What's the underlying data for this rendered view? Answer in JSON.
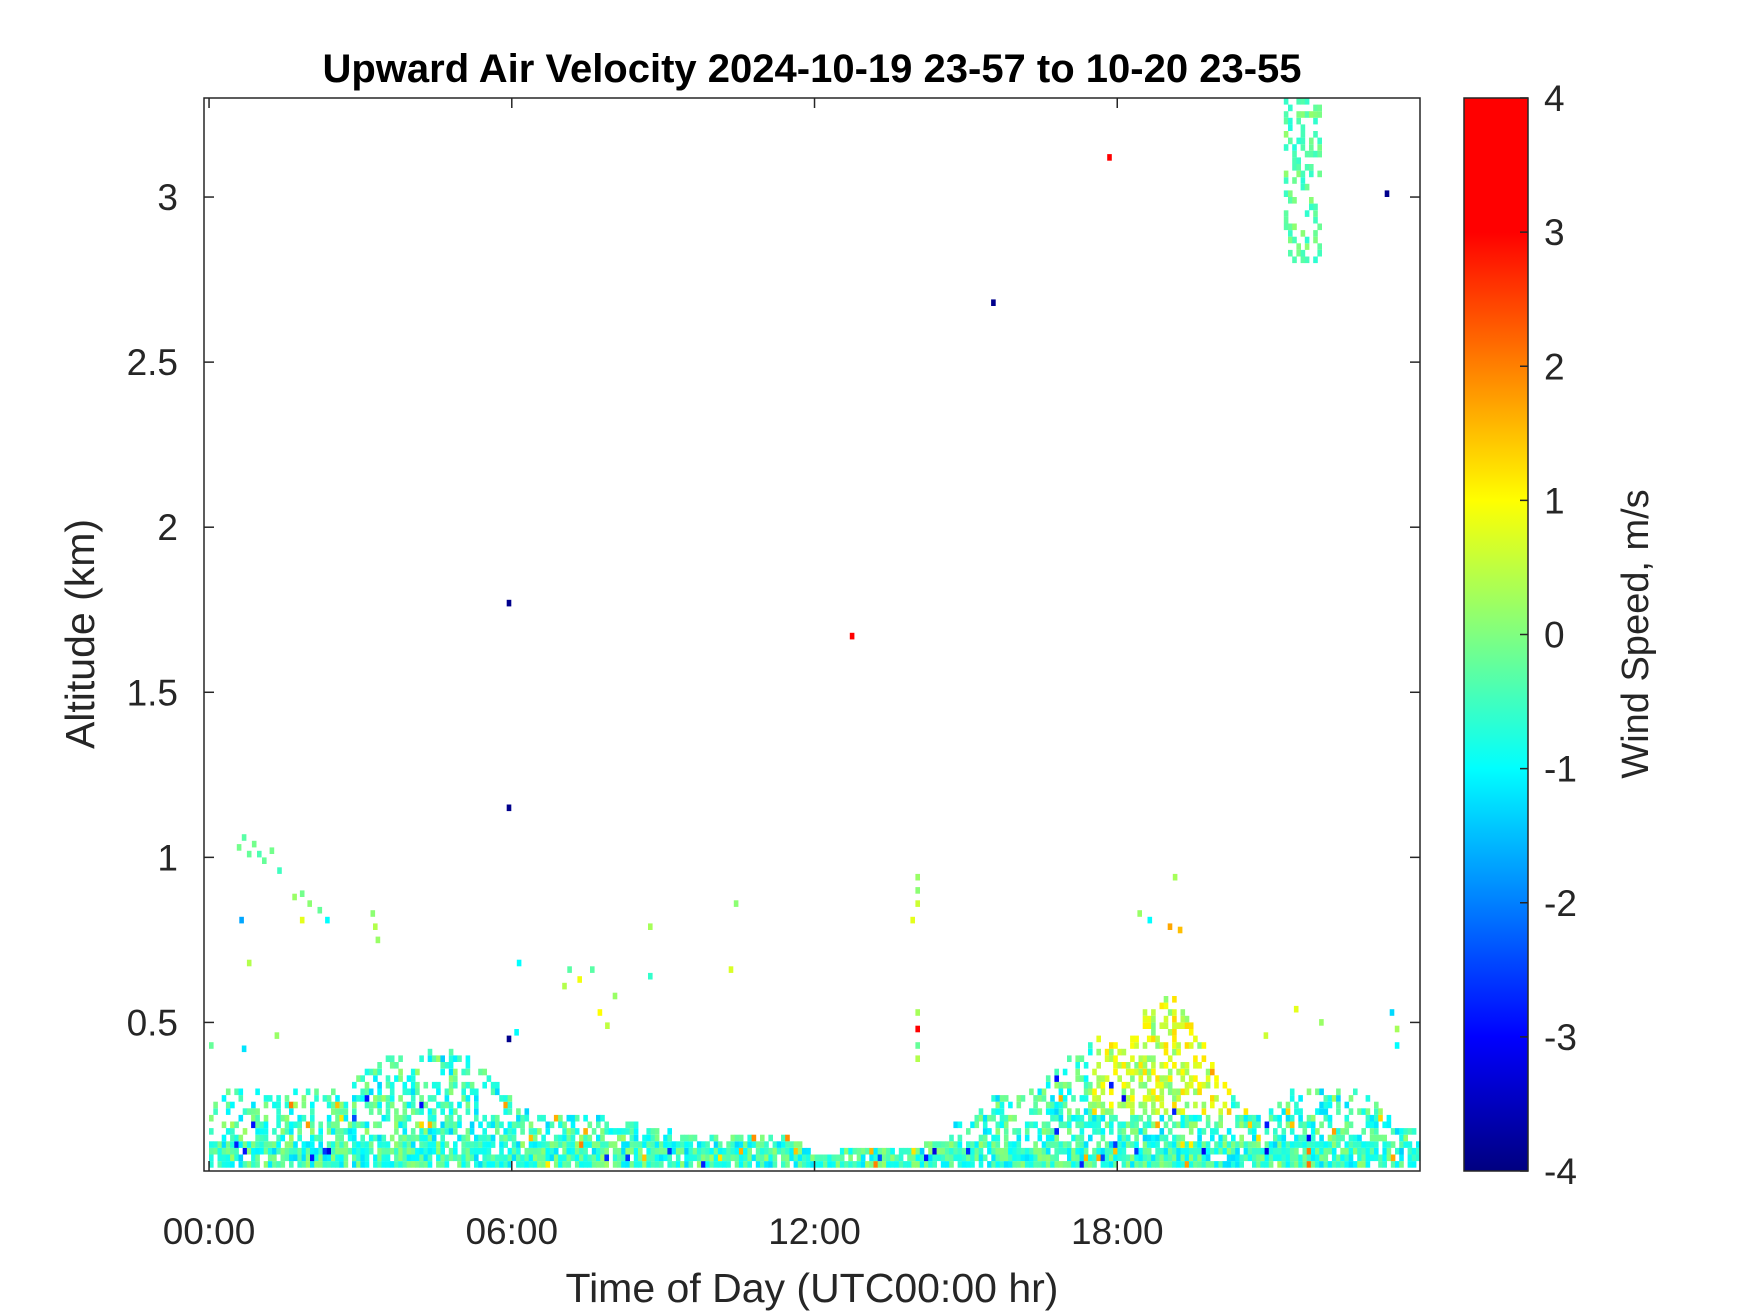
{
  "chart_data": {
    "type": "heatmap",
    "title": "Upward Air Velocity 2024-10-19 23-57 to 10-20 23-55",
    "xlabel": "Time of Day (UTC00:00 hr)",
    "ylabel": "Altitude (km)",
    "x_unit": "hours UTC",
    "xlim": [
      -0.1,
      24
    ],
    "ylim": [
      0.05,
      3.3
    ],
    "x_ticks": [
      {
        "value": 0,
        "label": "00:00"
      },
      {
        "value": 6,
        "label": "06:00"
      },
      {
        "value": 12,
        "label": "12:00"
      },
      {
        "value": 18,
        "label": "18:00"
      }
    ],
    "y_ticks": [
      {
        "value": 0.5,
        "label": "0.5"
      },
      {
        "value": 1.0,
        "label": "1"
      },
      {
        "value": 1.5,
        "label": "1.5"
      },
      {
        "value": 2.0,
        "label": "2"
      },
      {
        "value": 2.5,
        "label": "2.5"
      },
      {
        "value": 3.0,
        "label": "3"
      }
    ],
    "grid": false,
    "colorbar": {
      "label": "Wind Speed, m/s",
      "min": -4,
      "max": 4,
      "colormap": "jet",
      "ticks": [
        {
          "value": 4,
          "label": "4"
        },
        {
          "value": 3,
          "label": "3"
        },
        {
          "value": 2,
          "label": "2"
        },
        {
          "value": 1,
          "label": "1"
        },
        {
          "value": 0,
          "label": "0"
        },
        {
          "value": -1,
          "label": "-1"
        },
        {
          "value": -2,
          "label": "-2"
        },
        {
          "value": -3,
          "label": "-3"
        },
        {
          "value": -4,
          "label": "-4"
        }
      ]
    },
    "resolution": {
      "dt_hours": 0.1667,
      "dz_km": 0.02
    },
    "approximate_data": {
      "note": "approximate reading of the observed radar cells",
      "boundary_layer_top_km": [
        [
          0.0,
          0.25
        ],
        [
          0.5,
          0.3
        ],
        [
          1.0,
          0.28
        ],
        [
          1.5,
          0.27
        ],
        [
          2.0,
          0.3
        ],
        [
          2.5,
          0.28
        ],
        [
          3.0,
          0.36
        ],
        [
          3.5,
          0.4
        ],
        [
          4.0,
          0.4
        ],
        [
          4.5,
          0.42
        ],
        [
          5.0,
          0.4
        ],
        [
          5.5,
          0.33
        ],
        [
          6.0,
          0.25
        ],
        [
          6.5,
          0.22
        ],
        [
          7.0,
          0.21
        ],
        [
          7.5,
          0.22
        ],
        [
          8.0,
          0.2
        ],
        [
          8.5,
          0.18
        ],
        [
          9.0,
          0.17
        ],
        [
          9.5,
          0.16
        ],
        [
          10.0,
          0.15
        ],
        [
          10.5,
          0.15
        ],
        [
          11.0,
          0.16
        ],
        [
          11.5,
          0.14
        ],
        [
          12.0,
          0.09
        ],
        [
          12.5,
          0.1
        ],
        [
          13.0,
          0.11
        ],
        [
          13.5,
          0.12
        ],
        [
          14.0,
          0.11
        ],
        [
          14.5,
          0.15
        ],
        [
          15.0,
          0.21
        ],
        [
          15.5,
          0.26
        ],
        [
          16.0,
          0.28
        ],
        [
          16.5,
          0.31
        ],
        [
          17.0,
          0.38
        ],
        [
          17.5,
          0.45
        ],
        [
          18.0,
          0.42
        ],
        [
          18.5,
          0.52
        ],
        [
          19.0,
          0.58
        ],
        [
          19.5,
          0.48
        ],
        [
          20.0,
          0.32
        ],
        [
          20.5,
          0.22
        ],
        [
          21.0,
          0.23
        ],
        [
          21.5,
          0.3
        ],
        [
          22.0,
          0.28
        ],
        [
          22.5,
          0.3
        ],
        [
          23.0,
          0.26
        ],
        [
          23.5,
          0.18
        ],
        [
          24.0,
          0.16
        ]
      ],
      "updraft_zones": [
        {
          "t0": 17.5,
          "t1": 19.8,
          "z0": 0.2,
          "z1": 0.75,
          "mean": 0.6
        },
        {
          "t0": 19.8,
          "t1": 20.2,
          "z0": 0.2,
          "z1": 0.5,
          "mean": 0.9
        }
      ],
      "high_plume": {
        "t0": 21.3,
        "t1": 22.0,
        "z0": 2.8,
        "z1": 3.3,
        "mean": -0.3
      },
      "cells": [
        {
          "t": 0.55,
          "z": 1.02,
          "v": -0.1
        },
        {
          "t": 0.65,
          "z": 1.05,
          "v": -0.3
        },
        {
          "t": 0.75,
          "z": 1.0,
          "v": -0.2
        },
        {
          "t": 0.85,
          "z": 1.03,
          "v": -0.1
        },
        {
          "t": 0.95,
          "z": 1.0,
          "v": -0.4
        },
        {
          "t": 1.05,
          "z": 0.98,
          "v": -0.2
        },
        {
          "t": 1.2,
          "z": 1.01,
          "v": -0.1
        },
        {
          "t": 1.35,
          "z": 0.95,
          "v": -0.5
        },
        {
          "t": 1.65,
          "z": 0.87,
          "v": 0.2
        },
        {
          "t": 1.8,
          "z": 0.88,
          "v": -0.1
        },
        {
          "t": 1.95,
          "z": 0.85,
          "v": 0.1
        },
        {
          "t": 2.15,
          "z": 0.83,
          "v": -0.2
        },
        {
          "t": 0.6,
          "z": 0.8,
          "v": -1.7
        },
        {
          "t": 1.8,
          "z": 0.8,
          "v": 0.8
        },
        {
          "t": 2.3,
          "z": 0.8,
          "v": -1.0
        },
        {
          "t": 3.2,
          "z": 0.82,
          "v": 0.1
        },
        {
          "t": 3.25,
          "z": 0.78,
          "v": 0.4
        },
        {
          "t": 3.3,
          "z": 0.74,
          "v": 0.2
        },
        {
          "t": 0.75,
          "z": 0.67,
          "v": 0.4
        },
        {
          "t": 0.65,
          "z": 0.41,
          "v": -1.2
        },
        {
          "t": 0.0,
          "z": 0.42,
          "v": -0.2
        },
        {
          "t": 1.3,
          "z": 0.45,
          "v": 0.2
        },
        {
          "t": 5.9,
          "z": 1.76,
          "v": -3.9
        },
        {
          "t": 5.9,
          "z": 1.14,
          "v": -3.9
        },
        {
          "t": 5.9,
          "z": 0.44,
          "v": -3.9
        },
        {
          "t": 6.1,
          "z": 0.67,
          "v": -1.0
        },
        {
          "t": 6.05,
          "z": 0.46,
          "v": -1.0
        },
        {
          "t": 7.0,
          "z": 0.6,
          "v": 0.4
        },
        {
          "t": 7.1,
          "z": 0.65,
          "v": -0.3
        },
        {
          "t": 7.3,
          "z": 0.62,
          "v": 0.9
        },
        {
          "t": 7.55,
          "z": 0.65,
          "v": -0.3
        },
        {
          "t": 7.7,
          "z": 0.52,
          "v": 1.0
        },
        {
          "t": 7.85,
          "z": 0.48,
          "v": 0.5
        },
        {
          "t": 8.7,
          "z": 0.78,
          "v": 0.3
        },
        {
          "t": 8.7,
          "z": 0.63,
          "v": -0.6
        },
        {
          "t": 8.0,
          "z": 0.57,
          "v": 0.2
        },
        {
          "t": 10.4,
          "z": 0.85,
          "v": 0.1
        },
        {
          "t": 10.3,
          "z": 0.65,
          "v": 0.7
        },
        {
          "t": 12.7,
          "z": 1.66,
          "v": 3.9
        },
        {
          "t": 14.0,
          "z": 0.93,
          "v": 0.2
        },
        {
          "t": 14.0,
          "z": 0.89,
          "v": 0.1
        },
        {
          "t": 14.0,
          "z": 0.85,
          "v": 0.6
        },
        {
          "t": 13.9,
          "z": 0.8,
          "v": 0.8
        },
        {
          "t": 14.0,
          "z": 0.52,
          "v": 0.3
        },
        {
          "t": 14.0,
          "z": 0.47,
          "v": 3.2
        },
        {
          "t": 14.0,
          "z": 0.42,
          "v": -0.2
        },
        {
          "t": 14.0,
          "z": 0.38,
          "v": 0.4
        },
        {
          "t": 15.5,
          "z": 2.67,
          "v": -3.9
        },
        {
          "t": 17.8,
          "z": 3.11,
          "v": 3.9
        },
        {
          "t": 23.3,
          "z": 3.0,
          "v": -3.9
        },
        {
          "t": 19.1,
          "z": 0.93,
          "v": 0.3
        },
        {
          "t": 18.4,
          "z": 0.82,
          "v": 0.2
        },
        {
          "t": 18.6,
          "z": 0.8,
          "v": -1.0
        },
        {
          "t": 19.0,
          "z": 0.78,
          "v": 1.7
        },
        {
          "t": 19.2,
          "z": 0.77,
          "v": 1.5
        },
        {
          "t": 23.4,
          "z": 0.52,
          "v": -1.3
        },
        {
          "t": 23.5,
          "z": 0.42,
          "v": -1.0
        },
        {
          "t": 22.0,
          "z": 0.49,
          "v": 0.2
        },
        {
          "t": 21.5,
          "z": 0.53,
          "v": 0.8
        },
        {
          "t": 20.9,
          "z": 0.45,
          "v": 0.6
        },
        {
          "t": 23.5,
          "z": 0.47,
          "v": 0.3
        }
      ]
    }
  }
}
